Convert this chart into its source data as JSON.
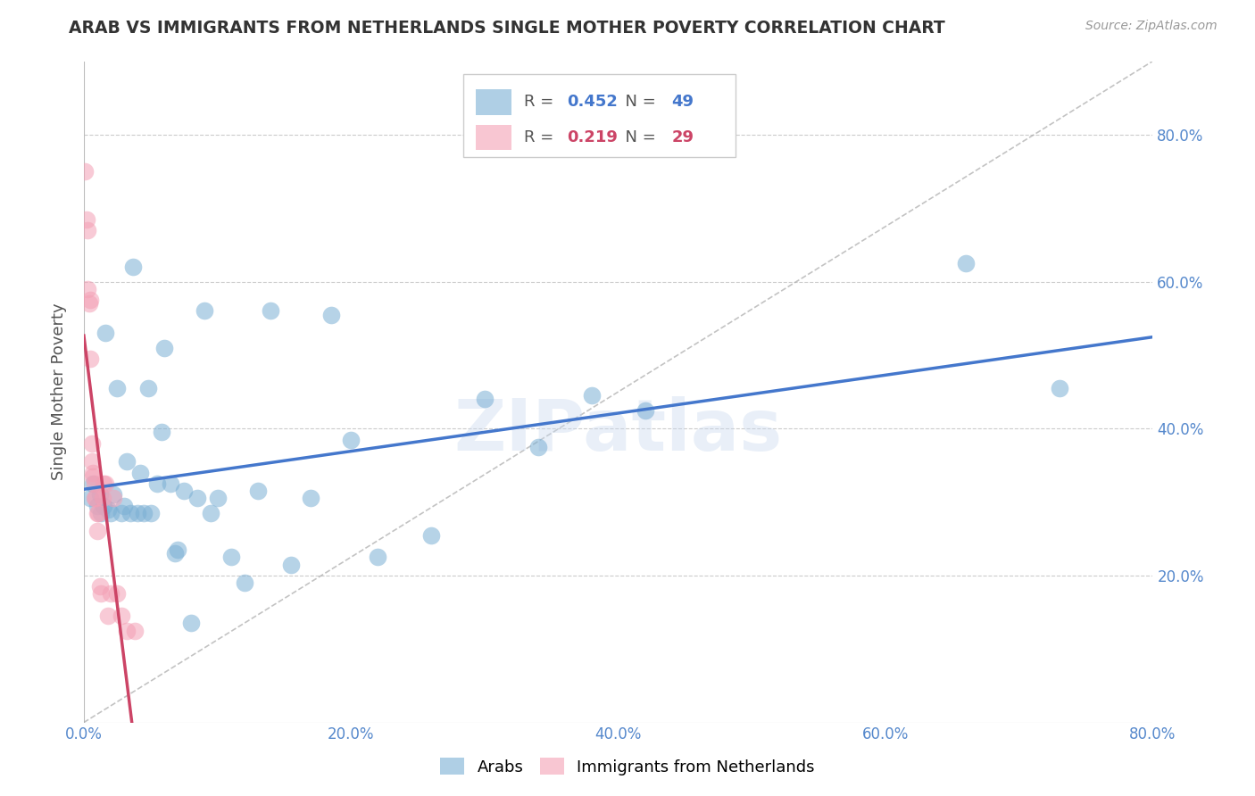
{
  "title": "ARAB VS IMMIGRANTS FROM NETHERLANDS SINGLE MOTHER POVERTY CORRELATION CHART",
  "source": "Source: ZipAtlas.com",
  "ylabel": "Single Mother Poverty",
  "xlim": [
    0.0,
    0.8
  ],
  "ylim": [
    0.0,
    0.9
  ],
  "xticks": [
    0.0,
    0.2,
    0.4,
    0.6,
    0.8
  ],
  "yticks": [
    0.2,
    0.4,
    0.6,
    0.8
  ],
  "xtick_labels": [
    "0.0%",
    "20.0%",
    "40.0%",
    "60.0%",
    "80.0%"
  ],
  "ytick_labels": [
    "20.0%",
    "40.0%",
    "60.0%",
    "80.0%"
  ],
  "watermark": "ZIPatlas",
  "legend_labels": [
    "Arabs",
    "Immigrants from Netherlands"
  ],
  "arab_R": "0.452",
  "arab_N": "49",
  "netherlands_R": "0.219",
  "netherlands_N": "29",
  "arab_color": "#7bafd4",
  "netherlands_color": "#f4a0b5",
  "arab_line_color": "#4477cc",
  "netherlands_line_color": "#cc4466",
  "background_color": "#ffffff",
  "grid_color": "#cccccc",
  "axis_tick_color": "#5588cc",
  "title_color": "#333333",
  "arab_x": [
    0.005,
    0.007,
    0.01,
    0.012,
    0.013,
    0.015,
    0.016,
    0.018,
    0.02,
    0.022,
    0.025,
    0.028,
    0.03,
    0.032,
    0.035,
    0.037,
    0.04,
    0.042,
    0.045,
    0.048,
    0.05,
    0.055,
    0.058,
    0.06,
    0.065,
    0.068,
    0.07,
    0.075,
    0.08,
    0.085,
    0.09,
    0.095,
    0.1,
    0.11,
    0.12,
    0.13,
    0.14,
    0.155,
    0.17,
    0.185,
    0.2,
    0.22,
    0.26,
    0.3,
    0.34,
    0.38,
    0.42,
    0.66,
    0.73
  ],
  "arab_y": [
    0.305,
    0.325,
    0.295,
    0.31,
    0.285,
    0.295,
    0.53,
    0.29,
    0.285,
    0.31,
    0.455,
    0.285,
    0.295,
    0.355,
    0.285,
    0.62,
    0.285,
    0.34,
    0.285,
    0.455,
    0.285,
    0.325,
    0.395,
    0.51,
    0.325,
    0.23,
    0.235,
    0.315,
    0.135,
    0.305,
    0.56,
    0.285,
    0.305,
    0.225,
    0.19,
    0.315,
    0.56,
    0.215,
    0.305,
    0.555,
    0.385,
    0.225,
    0.255,
    0.44,
    0.375,
    0.445,
    0.425,
    0.625,
    0.455
  ],
  "netherlands_x": [
    0.001,
    0.002,
    0.003,
    0.003,
    0.004,
    0.005,
    0.005,
    0.006,
    0.006,
    0.007,
    0.007,
    0.008,
    0.008,
    0.009,
    0.01,
    0.01,
    0.011,
    0.012,
    0.013,
    0.014,
    0.015,
    0.016,
    0.018,
    0.02,
    0.022,
    0.025,
    0.028,
    0.032,
    0.038
  ],
  "netherlands_y": [
    0.75,
    0.685,
    0.67,
    0.59,
    0.57,
    0.575,
    0.495,
    0.38,
    0.355,
    0.34,
    0.335,
    0.325,
    0.305,
    0.305,
    0.285,
    0.26,
    0.285,
    0.185,
    0.175,
    0.305,
    0.325,
    0.325,
    0.145,
    0.175,
    0.305,
    0.175,
    0.145,
    0.125,
    0.125
  ],
  "ref_line_color": "#aaaaaa",
  "ref_line_style": "--"
}
